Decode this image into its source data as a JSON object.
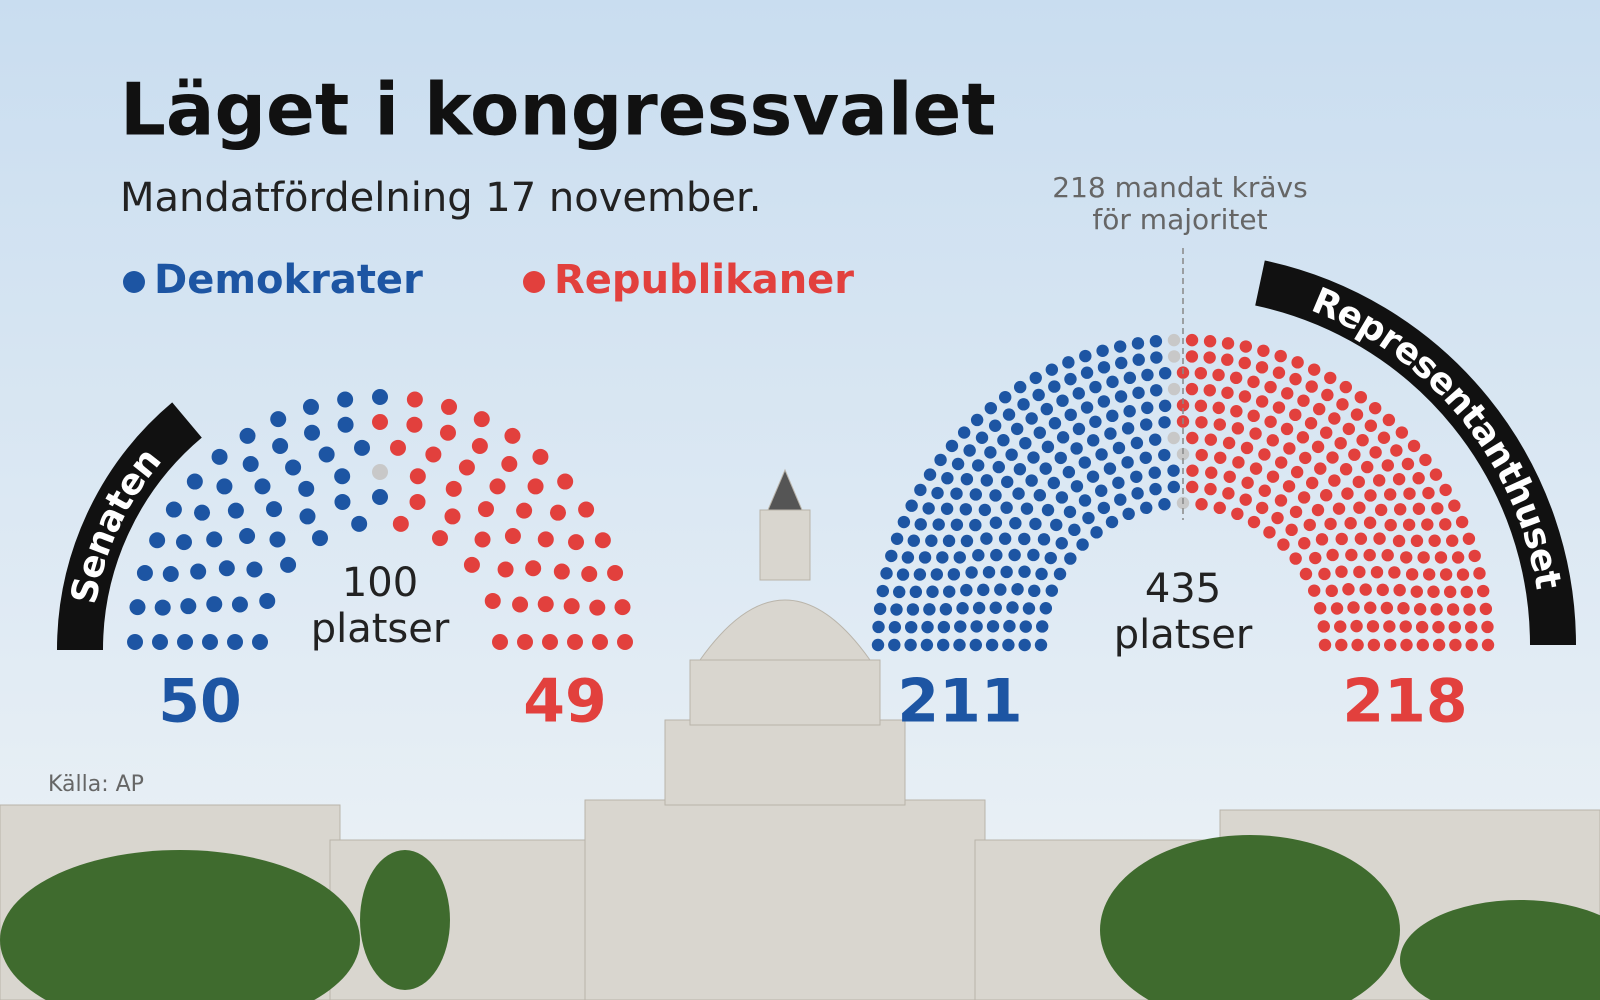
{
  "chart_data": {
    "type": "parliament",
    "title": "Läget i kongressvalet",
    "subtitle": "Mandatfördelning 17 november.",
    "categories": [
      "Senaten",
      "Representanthuset"
    ],
    "series": [
      {
        "name": "Demokrater",
        "color": "#1d55a3",
        "values": [
          50,
          211
        ]
      },
      {
        "name": "Republikaner",
        "color": "#e2403d",
        "values": [
          49,
          218
        ]
      }
    ],
    "undecided_color": "#c8c8c8",
    "totals": [
      100,
      435
    ],
    "total_labels": [
      "100\nplatser",
      "435\nplatser"
    ],
    "majority": 218,
    "annotation": "218 mandat krävs\nför majoritet",
    "source": "Källa: AP"
  }
}
